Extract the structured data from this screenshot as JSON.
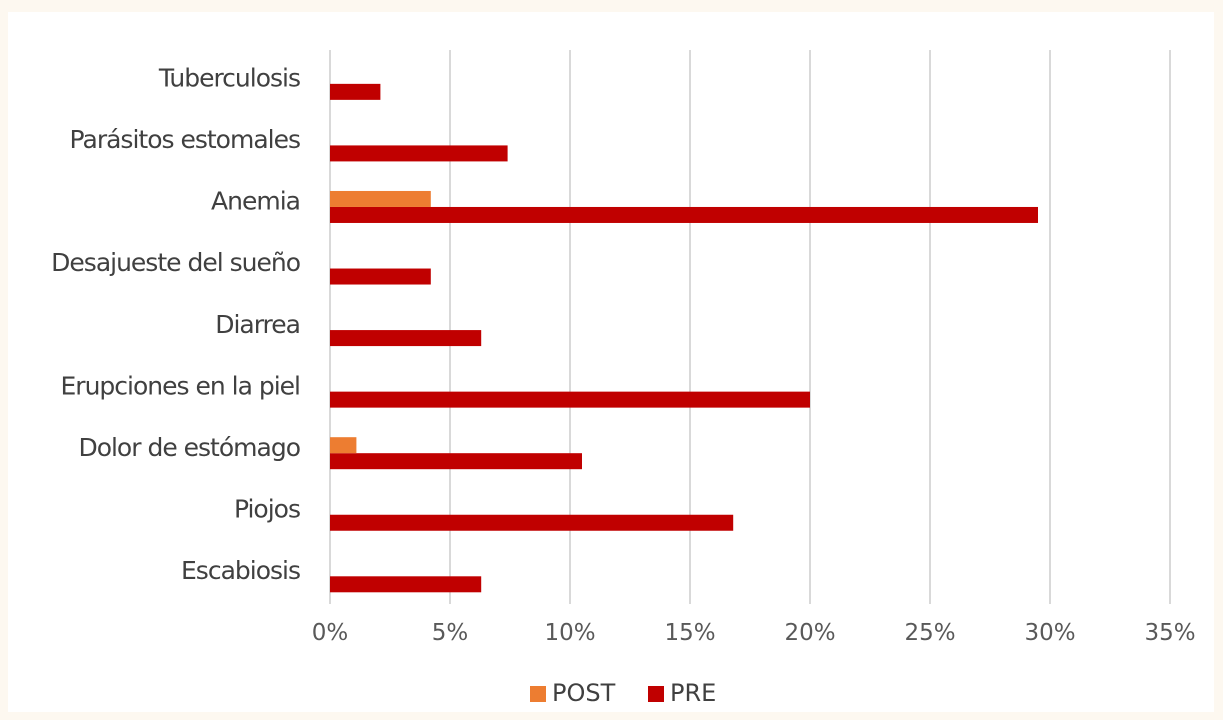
{
  "chart_data": {
    "type": "bar",
    "orientation": "horizontal",
    "categories": [
      "Tuberculosis",
      "Parásitos estomales",
      "Anemia",
      "Desajueste del sueño",
      "Diarrea",
      "Erupciones en la piel",
      "Dolor de estómago",
      "Piojos",
      "Escabiosis"
    ],
    "series": [
      {
        "name": "POST",
        "color": "#ed7d31",
        "values": [
          0,
          0,
          4.2,
          0,
          0,
          0,
          1.1,
          0,
          0
        ]
      },
      {
        "name": "PRE",
        "color": "#c00000",
        "values": [
          2.1,
          7.4,
          29.5,
          4.2,
          6.3,
          20.0,
          10.5,
          16.8,
          6.3
        ]
      }
    ],
    "xlim": [
      0,
      35
    ],
    "xticks": [
      0,
      5,
      10,
      15,
      20,
      25,
      30,
      35
    ],
    "tick_labels": [
      "0%",
      "5%",
      "10%",
      "15%",
      "20%",
      "25%",
      "30%",
      "35%"
    ],
    "grid": true,
    "legend_position": "bottom",
    "title": "",
    "xlabel": "",
    "ylabel": ""
  }
}
